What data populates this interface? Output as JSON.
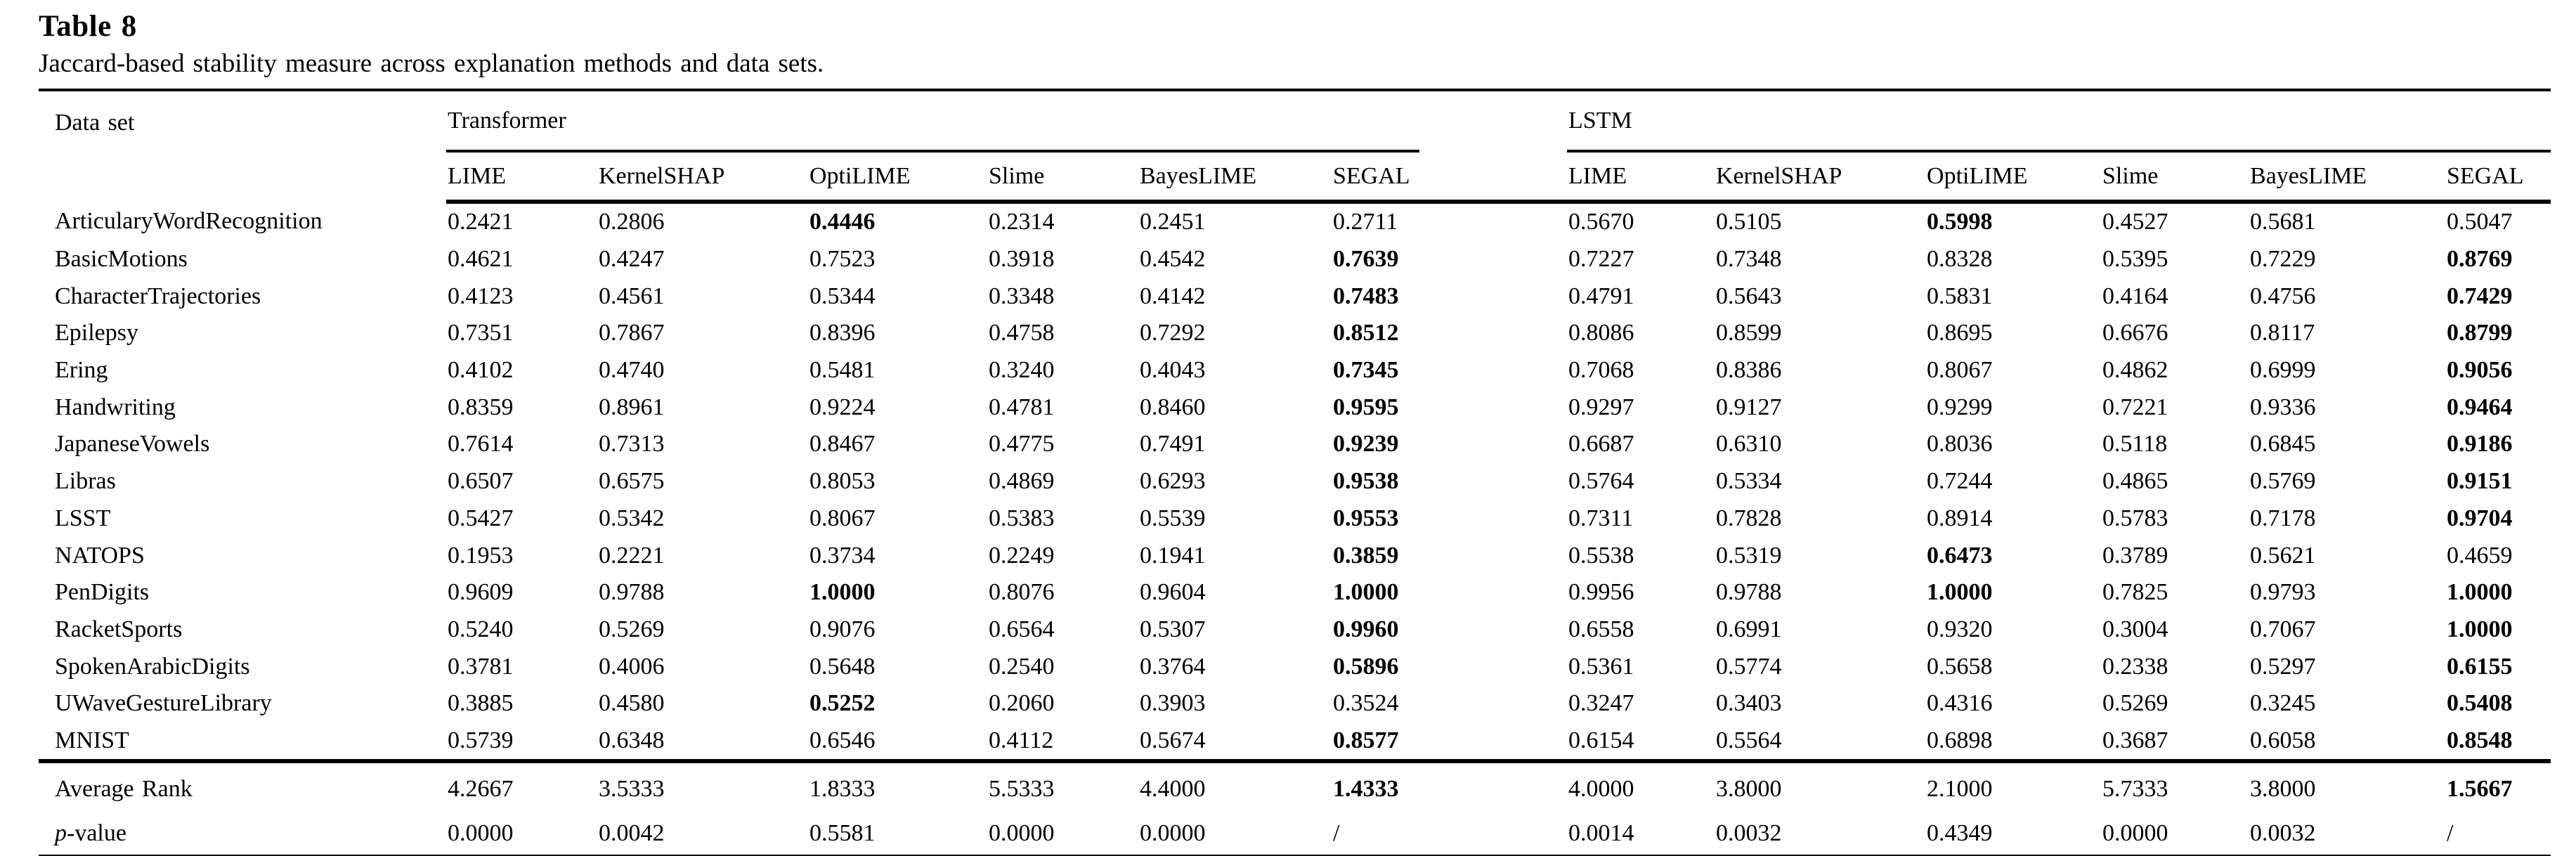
{
  "title": "Table 8",
  "caption": "Jaccard-based stability measure across explanation methods and data sets.",
  "table": {
    "columns": {
      "dataset_header": "Data set",
      "groups": [
        {
          "label": "Transformer",
          "methods": [
            "LIME",
            "KernelSHAP",
            "OptiLIME",
            "Slime",
            "BayesLIME",
            "SEGAL"
          ]
        },
        {
          "label": "LSTM",
          "methods": [
            "LIME",
            "KernelSHAP",
            "OptiLIME",
            "Slime",
            "BayesLIME",
            "SEGAL"
          ]
        }
      ]
    },
    "rows": [
      {
        "dataset": "ArticularyWordRecognition",
        "values": [
          "0.2421",
          "0.2806",
          "0.4446",
          "0.2314",
          "0.2451",
          "0.2711",
          "0.5670",
          "0.5105",
          "0.5998",
          "0.4527",
          "0.5681",
          "0.5047"
        ],
        "bold": [
          2,
          8
        ]
      },
      {
        "dataset": "BasicMotions",
        "values": [
          "0.4621",
          "0.4247",
          "0.7523",
          "0.3918",
          "0.4542",
          "0.7639",
          "0.7227",
          "0.7348",
          "0.8328",
          "0.5395",
          "0.7229",
          "0.8769"
        ],
        "bold": [
          5,
          11
        ]
      },
      {
        "dataset": "CharacterTrajectories",
        "values": [
          "0.4123",
          "0.4561",
          "0.5344",
          "0.3348",
          "0.4142",
          "0.7483",
          "0.4791",
          "0.5643",
          "0.5831",
          "0.4164",
          "0.4756",
          "0.7429"
        ],
        "bold": [
          5,
          11
        ]
      },
      {
        "dataset": "Epilepsy",
        "values": [
          "0.7351",
          "0.7867",
          "0.8396",
          "0.4758",
          "0.7292",
          "0.8512",
          "0.8086",
          "0.8599",
          "0.8695",
          "0.6676",
          "0.8117",
          "0.8799"
        ],
        "bold": [
          5,
          11
        ]
      },
      {
        "dataset": "Ering",
        "values": [
          "0.4102",
          "0.4740",
          "0.5481",
          "0.3240",
          "0.4043",
          "0.7345",
          "0.7068",
          "0.8386",
          "0.8067",
          "0.4862",
          "0.6999",
          "0.9056"
        ],
        "bold": [
          5,
          11
        ]
      },
      {
        "dataset": "Handwriting",
        "values": [
          "0.8359",
          "0.8961",
          "0.9224",
          "0.4781",
          "0.8460",
          "0.9595",
          "0.9297",
          "0.9127",
          "0.9299",
          "0.7221",
          "0.9336",
          "0.9464"
        ],
        "bold": [
          5,
          11
        ]
      },
      {
        "dataset": "JapaneseVowels",
        "values": [
          "0.7614",
          "0.7313",
          "0.8467",
          "0.4775",
          "0.7491",
          "0.9239",
          "0.6687",
          "0.6310",
          "0.8036",
          "0.5118",
          "0.6845",
          "0.9186"
        ],
        "bold": [
          5,
          11
        ]
      },
      {
        "dataset": "Libras",
        "values": [
          "0.6507",
          "0.6575",
          "0.8053",
          "0.4869",
          "0.6293",
          "0.9538",
          "0.5764",
          "0.5334",
          "0.7244",
          "0.4865",
          "0.5769",
          "0.9151"
        ],
        "bold": [
          5,
          11
        ]
      },
      {
        "dataset": "LSST",
        "values": [
          "0.5427",
          "0.5342",
          "0.8067",
          "0.5383",
          "0.5539",
          "0.9553",
          "0.7311",
          "0.7828",
          "0.8914",
          "0.5783",
          "0.7178",
          "0.9704"
        ],
        "bold": [
          5,
          11
        ]
      },
      {
        "dataset": "NATOPS",
        "values": [
          "0.1953",
          "0.2221",
          "0.3734",
          "0.2249",
          "0.1941",
          "0.3859",
          "0.5538",
          "0.5319",
          "0.6473",
          "0.3789",
          "0.5621",
          "0.4659"
        ],
        "bold": [
          5,
          8
        ]
      },
      {
        "dataset": "PenDigits",
        "values": [
          "0.9609",
          "0.9788",
          "1.0000",
          "0.8076",
          "0.9604",
          "1.0000",
          "0.9956",
          "0.9788",
          "1.0000",
          "0.7825",
          "0.9793",
          "1.0000"
        ],
        "bold": [
          2,
          5,
          8,
          11
        ]
      },
      {
        "dataset": "RacketSports",
        "values": [
          "0.5240",
          "0.5269",
          "0.9076",
          "0.6564",
          "0.5307",
          "0.9960",
          "0.6558",
          "0.6991",
          "0.9320",
          "0.3004",
          "0.7067",
          "1.0000"
        ],
        "bold": [
          5,
          11
        ]
      },
      {
        "dataset": "SpokenArabicDigits",
        "values": [
          "0.3781",
          "0.4006",
          "0.5648",
          "0.2540",
          "0.3764",
          "0.5896",
          "0.5361",
          "0.5774",
          "0.5658",
          "0.2338",
          "0.5297",
          "0.6155"
        ],
        "bold": [
          5,
          11
        ]
      },
      {
        "dataset": "UWaveGestureLibrary",
        "values": [
          "0.3885",
          "0.4580",
          "0.5252",
          "0.2060",
          "0.3903",
          "0.3524",
          "0.3247",
          "0.3403",
          "0.4316",
          "0.5269",
          "0.3245",
          "0.5408"
        ],
        "bold": [
          2,
          11
        ]
      },
      {
        "dataset": "MNIST",
        "values": [
          "0.5739",
          "0.6348",
          "0.6546",
          "0.4112",
          "0.5674",
          "0.8577",
          "0.6154",
          "0.5564",
          "0.6898",
          "0.3687",
          "0.6058",
          "0.8548"
        ],
        "bold": [
          5,
          11
        ]
      }
    ],
    "summary_rows": [
      {
        "label_italic": "",
        "label": "Average Rank",
        "values": [
          "4.2667",
          "3.5333",
          "1.8333",
          "5.5333",
          "4.4000",
          "1.4333",
          "4.0000",
          "3.8000",
          "2.1000",
          "5.7333",
          "3.8000",
          "1.5667"
        ],
        "bold": [
          5,
          11
        ]
      },
      {
        "label_italic": "p",
        "label": "-value",
        "values": [
          "0.0000",
          "0.0042",
          "0.5581",
          "0.0000",
          "0.0000",
          "/",
          "0.0014",
          "0.0032",
          "0.4349",
          "0.0000",
          "0.0032",
          "/"
        ],
        "bold": []
      }
    ]
  }
}
